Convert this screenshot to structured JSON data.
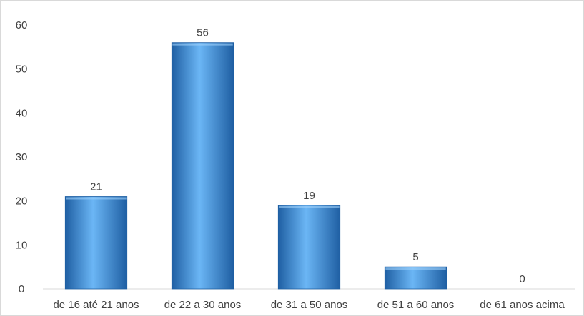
{
  "chart_data": {
    "type": "bar",
    "categories": [
      "de 16 até 21 anos",
      "de 22 a 30 anos",
      "de 31 a 50 anos",
      "de 51 a 60 anos",
      "de 61 anos acima"
    ],
    "values": [
      21,
      56,
      19,
      5,
      0
    ],
    "data_labels": [
      "21",
      "56",
      "19",
      "5",
      "0"
    ],
    "title": "",
    "xlabel": "",
    "ylabel": "",
    "ylim": [
      0,
      60
    ],
    "yticks": [
      0,
      10,
      20,
      30,
      40,
      50,
      60
    ],
    "grid": false,
    "legend": "none",
    "bar_color": "#3a8fd9",
    "bar_color_light": "#6bb6f5",
    "bar_color_dark": "#1f5fa3"
  }
}
